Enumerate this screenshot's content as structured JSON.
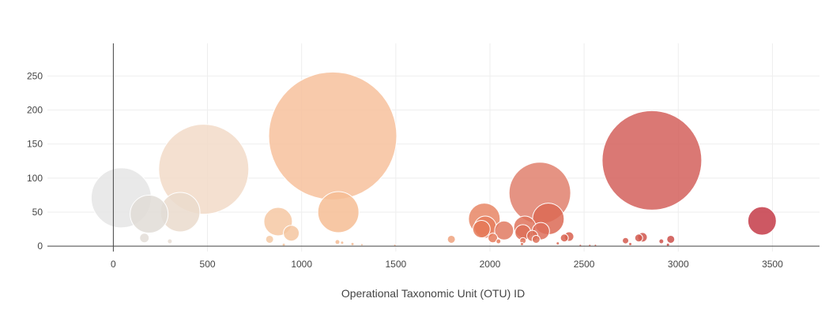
{
  "chart_data": {
    "type": "scatter",
    "xlabel": "Operational Taxonomic Unit (OTU) ID",
    "ylabel": "",
    "xlim": [
      -350,
      3750
    ],
    "ylim": [
      -8,
      298
    ],
    "x_ticks": [
      0,
      500,
      1000,
      1500,
      2000,
      2500,
      3000,
      3500
    ],
    "y_ticks": [
      0,
      50,
      100,
      150,
      200,
      250
    ],
    "grid": true,
    "marker_sizing": "bubble radius proportional to value",
    "colorscale": "Earth-like (grey → beige → orange → red)",
    "points": [
      {
        "x": 42,
        "y": 71,
        "r": 38,
        "color": "#e5e5e5"
      },
      {
        "x": 190,
        "y": 47,
        "r": 24,
        "color": "#e1dcd6"
      },
      {
        "x": 165,
        "y": 12,
        "r": 6,
        "color": "#e3ddd7"
      },
      {
        "x": 300,
        "y": 7,
        "r": 3,
        "color": "#e8dcd2"
      },
      {
        "x": 355,
        "y": 50,
        "r": 25,
        "color": "#eadbcd"
      },
      {
        "x": 480,
        "y": 113,
        "r": 57,
        "color": "#f2dac8"
      },
      {
        "x": 830,
        "y": 10,
        "r": 5,
        "color": "#f4c9a4"
      },
      {
        "x": 875,
        "y": 36,
        "r": 18,
        "color": "#f6c8a3"
      },
      {
        "x": 945,
        "y": 19,
        "r": 10,
        "color": "#f5c6a0"
      },
      {
        "x": 905,
        "y": 2,
        "r": 2,
        "color": "#f4c6a0"
      },
      {
        "x": 1165,
        "y": 162,
        "r": 81,
        "color": "#f7c19c"
      },
      {
        "x": 1195,
        "y": 50,
        "r": 26,
        "color": "#f6bd94"
      },
      {
        "x": 1190,
        "y": 6,
        "r": 3,
        "color": "#f3bb94"
      },
      {
        "x": 1215,
        "y": 5,
        "r": 2,
        "color": "#f3bb94"
      },
      {
        "x": 1270,
        "y": 3,
        "r": 2,
        "color": "#f3bb94"
      },
      {
        "x": 1320,
        "y": 2,
        "r": 1.5,
        "color": "#f3bb94"
      },
      {
        "x": 1495,
        "y": 1,
        "r": 1.5,
        "color": "#f0a880"
      },
      {
        "x": 1795,
        "y": 10,
        "r": 5,
        "color": "#eea27e"
      },
      {
        "x": 1970,
        "y": 40,
        "r": 20,
        "color": "#e88665"
      },
      {
        "x": 1975,
        "y": 28,
        "r": 14,
        "color": "#e67e5e"
      },
      {
        "x": 1955,
        "y": 25,
        "r": 11,
        "color": "#e57a59"
      },
      {
        "x": 2015,
        "y": 12,
        "r": 6,
        "color": "#e57a5a"
      },
      {
        "x": 2045,
        "y": 7,
        "r": 3,
        "color": "#e57a5a"
      },
      {
        "x": 2075,
        "y": 23,
        "r": 12,
        "color": "#e07a62"
      },
      {
        "x": 2175,
        "y": 8,
        "r": 4,
        "color": "#e0775e"
      },
      {
        "x": 2185,
        "y": 28,
        "r": 14,
        "color": "#df735c"
      },
      {
        "x": 2175,
        "y": 20,
        "r": 10,
        "color": "#dd7058"
      },
      {
        "x": 2170,
        "y": 3,
        "r": 2,
        "color": "#dd7058"
      },
      {
        "x": 2225,
        "y": 15,
        "r": 7,
        "color": "#dc6e57"
      },
      {
        "x": 2245,
        "y": 10,
        "r": 5,
        "color": "#dc6e57"
      },
      {
        "x": 2265,
        "y": 78,
        "r": 39,
        "color": "#e0806d"
      },
      {
        "x": 2270,
        "y": 22,
        "r": 11,
        "color": "#dd6f5b"
      },
      {
        "x": 2310,
        "y": 40,
        "r": 20,
        "color": "#dc6a55"
      },
      {
        "x": 2360,
        "y": 4,
        "r": 2,
        "color": "#da6a55"
      },
      {
        "x": 2395,
        "y": 12,
        "r": 5,
        "color": "#d8604f"
      },
      {
        "x": 2420,
        "y": 14,
        "r": 6,
        "color": "#d8604f"
      },
      {
        "x": 2480,
        "y": 1,
        "r": 1.5,
        "color": "#d8604f"
      },
      {
        "x": 2530,
        "y": 1,
        "r": 1.5,
        "color": "#d8604f"
      },
      {
        "x": 2560,
        "y": 1,
        "r": 1.5,
        "color": "#d8604f"
      },
      {
        "x": 2720,
        "y": 8,
        "r": 4,
        "color": "#d45a4f"
      },
      {
        "x": 2745,
        "y": 3,
        "r": 2,
        "color": "#d45a4f"
      },
      {
        "x": 2790,
        "y": 12,
        "r": 5,
        "color": "#d25a4f"
      },
      {
        "x": 2810,
        "y": 13,
        "r": 6,
        "color": "#d0564d"
      },
      {
        "x": 2860,
        "y": 126,
        "r": 63,
        "color": "#d3605c"
      },
      {
        "x": 2910,
        "y": 7,
        "r": 3,
        "color": "#ce524c"
      },
      {
        "x": 2945,
        "y": 2,
        "r": 2,
        "color": "#ce524c"
      },
      {
        "x": 2960,
        "y": 10,
        "r": 5,
        "color": "#cc4f4a"
      },
      {
        "x": 3445,
        "y": 37,
        "r": 18,
        "color": "#c43b48"
      }
    ]
  },
  "colors": {
    "grid": "#eeeeee",
    "zero_line": "#444444",
    "x_axis_line": "#444444",
    "text": "#444444"
  }
}
